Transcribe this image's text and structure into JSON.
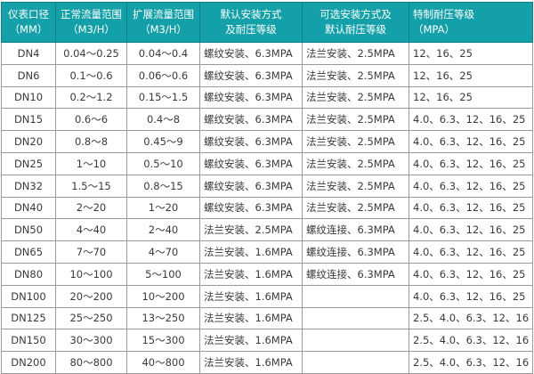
{
  "colors": {
    "header_bg": "#14a0a8",
    "header_text": "#ffffff",
    "border": "#9a9a9a"
  },
  "headers": [
    {
      "line1": "仪表口径",
      "line2": "（MM）"
    },
    {
      "line1": "正常流量范围",
      "line2": "（M3/H）"
    },
    {
      "line1": "扩展流量范围",
      "line2": "（M3/H）"
    },
    {
      "line1": "默认安装方式",
      "line2": "及耐压等级"
    },
    {
      "line1": "可选安装方式及",
      "line2": "默认耐压等级"
    },
    {
      "line1": "特制耐压等级",
      "line2": "（MPA）"
    }
  ],
  "rows": [
    [
      "DN4",
      "0.04～0.25",
      "0.04～0.4",
      "螺纹安装、6.3MPA",
      "法兰安装、2.5MPA",
      "12、16、25"
    ],
    [
      "DN6",
      "0.1～0.6",
      "0.06～0.6",
      "螺纹安装、6.3MPA",
      "法兰安装、2.5MPA",
      "12、16、25"
    ],
    [
      "DN10",
      "0.2～1.2",
      "0.15～1.5",
      "螺纹安装、6.3MPA",
      "法兰安装、2.5MPA",
      "12、16、25"
    ],
    [
      "DN15",
      "0.6～6",
      "0.4～8",
      "螺纹安装、6.3MPA",
      "法兰安装、2.5MPA",
      "4.0、6.3、12、16、25"
    ],
    [
      "DN20",
      "0.8～8",
      "0.45～9",
      "螺纹安装、6.3MPA",
      "法兰安装、2.5MPA",
      "4.0、6.3、12、16、25"
    ],
    [
      "DN25",
      "1～10",
      "0.5～10",
      "螺纹安装、6.3MPA",
      "法兰安装、2.5MPA",
      "4.0、6.3、12、16、25"
    ],
    [
      "DN32",
      "1.5～15",
      "0.8～15",
      "螺纹安装、6.3MPA",
      "法兰安装、2.5MPA",
      "4.0、6.3、12、16、25"
    ],
    [
      "DN40",
      "2～20",
      "1～20",
      "螺纹安装、6.3MPA",
      "法兰安装、2.5MPA",
      "4.0、6.3、12、16、25"
    ],
    [
      "DN50",
      "4～40",
      "2～40",
      "法兰安装、2.5MPA",
      "螺纹连接、6.3MPA",
      "4.0、6.3、12、16、25"
    ],
    [
      "DN65",
      "7～70",
      "4～70",
      "法兰安装、1.6MPA",
      "螺纹连接、6.3MPA",
      "4.0、6.3、12、16、25"
    ],
    [
      "DN80",
      "10～100",
      "5～100",
      "法兰安装、1.6MPA",
      "螺纹连接、6.3MPA",
      "4.0、6.3、12、16、25"
    ],
    [
      "DN100",
      "20～200",
      "10～200",
      "法兰安装、1.6MPA",
      "",
      "4.0、6.3、12、16、25"
    ],
    [
      "DN125",
      "25～250",
      "13～250",
      "法兰安装、1.6MPA",
      "",
      "2.5、4.0、6.3、12、16"
    ],
    [
      "DN150",
      "30～300",
      "15～300",
      "法兰安装、1.6MPA",
      "",
      "2.5、4.0、6.3、12、16"
    ],
    [
      "DN200",
      "80～800",
      "40～800",
      "法兰安装、1.6MPA",
      "",
      "2.5、4.0、6.3、12、16"
    ]
  ]
}
